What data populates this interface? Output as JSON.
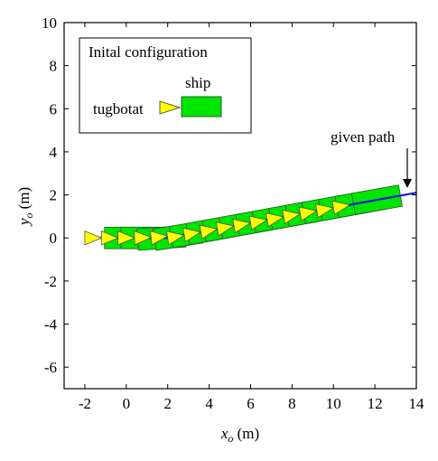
{
  "chart_data": {
    "type": "trajectory",
    "xlabel": [
      "x",
      "o",
      " (m)"
    ],
    "ylabel": [
      "y",
      "o",
      " (m)"
    ],
    "xlim": [
      -3,
      14
    ],
    "xticks": [
      -2,
      0,
      2,
      4,
      6,
      8,
      10,
      12,
      14
    ],
    "ylim": [
      -7,
      10
    ],
    "yticks": [
      -6,
      -4,
      -2,
      0,
      2,
      4,
      6,
      8,
      10
    ],
    "legend": {
      "title": "Inital configuration",
      "ship": "ship",
      "tug": "tugbotat"
    },
    "annotation": "given path",
    "path": {
      "x": [
        -2,
        2,
        14
      ],
      "y": [
        0,
        0,
        2.1
      ],
      "color": "#1a1adc"
    },
    "ship": {
      "color": "#00e600",
      "x": [
        0.1,
        0.9,
        1.7,
        2.5,
        3.3,
        4.1,
        4.9,
        5.7,
        6.5,
        7.3,
        8.1,
        8.9,
        9.7,
        10.5,
        11.3,
        12.1
      ],
      "y": [
        0,
        0,
        0,
        0.09,
        0.23,
        0.37,
        0.51,
        0.65,
        0.79,
        0.93,
        1.07,
        1.21,
        1.35,
        1.49,
        1.63,
        1.77
      ],
      "heading": [
        0,
        0,
        4,
        9,
        10,
        10,
        10,
        10,
        10,
        10,
        10,
        10,
        10,
        10,
        10,
        10
      ]
    },
    "tug": {
      "color": "#ffff00",
      "x": [
        -2,
        -1.2,
        -0.4,
        0.4,
        1.2,
        2,
        2.8,
        3.6,
        4.4,
        5.2,
        6,
        6.8,
        7.6,
        8.4,
        9.2,
        10
      ],
      "y": [
        0,
        0,
        0,
        0,
        0,
        0,
        0.14,
        0.28,
        0.42,
        0.56,
        0.7,
        0.84,
        0.98,
        1.12,
        1.26,
        1.4
      ],
      "heading": [
        0,
        0,
        0,
        2,
        6,
        9,
        10,
        10,
        10,
        10,
        10,
        10,
        10,
        10,
        10,
        10
      ]
    }
  }
}
